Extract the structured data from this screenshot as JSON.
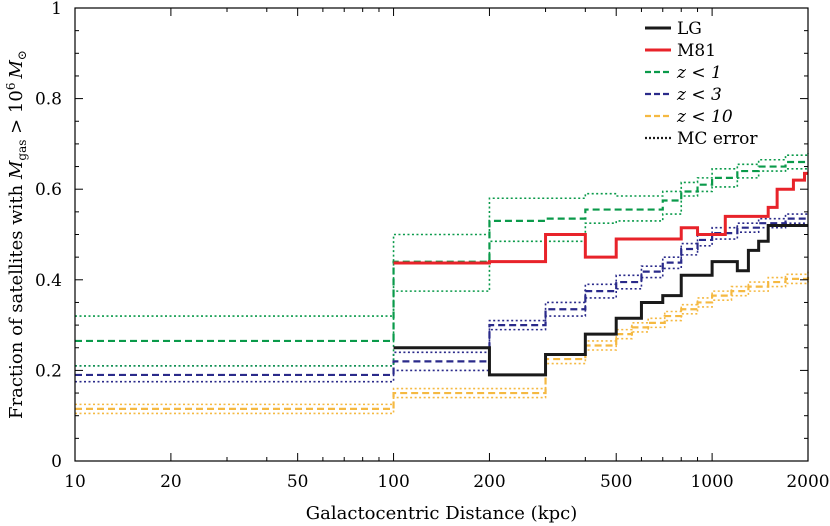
{
  "chart_data": {
    "type": "line",
    "step": true,
    "xscale": "log",
    "title": "",
    "xlabel": "Galactocentric Distance (kpc)",
    "ylabel": "Fraction of satellites with M_gas > 10^6 M_sun",
    "ylabel_parts": {
      "prefix": "Fraction of satellites with ",
      "sym": "M",
      "sub": "gas",
      "mid": " > 10",
      "sup": "6",
      "unit_sym": "M",
      "unit_sub": "⊙"
    },
    "xlim": [
      10,
      2000
    ],
    "ylim": [
      0,
      1
    ],
    "xticks": [
      10,
      20,
      50,
      100,
      200,
      500,
      1000,
      2000
    ],
    "xtick_labels": [
      "10",
      "20",
      "50",
      "100",
      "200",
      "500",
      "1000",
      "2000"
    ],
    "yticks": [
      0,
      0.2,
      0.4,
      0.6,
      0.8,
      1
    ],
    "ytick_labels": [
      "0",
      "0.2",
      "0.4",
      "0.6",
      "0.8",
      "1"
    ],
    "legend_position": "top-right",
    "legend": [
      {
        "label": "LG",
        "color": "#1a1a1a",
        "dash": "solid"
      },
      {
        "label": "M81",
        "color": "#e8232a",
        "dash": "solid"
      },
      {
        "label": "z < 1",
        "color": "#0a9a4a",
        "dash": "dashed"
      },
      {
        "label": "z < 3",
        "color": "#2a2a8a",
        "dash": "dashed"
      },
      {
        "label": "z < 10",
        "color": "#f5b942",
        "dash": "dashed"
      },
      {
        "label": "MC error",
        "color": "#1a1a1a",
        "dash": "dotted"
      }
    ],
    "series": [
      {
        "name": "z < 10 upper",
        "color": "#f5b942",
        "dash": "dotted",
        "width": 1.6,
        "x": [
          10,
          100,
          200,
          300,
          400,
          500,
          560,
          630,
          710,
          800,
          900,
          1000,
          1150,
          1300,
          1500,
          1700,
          2000
        ],
        "y": [
          0.125,
          0.16,
          0.16,
          0.235,
          0.265,
          0.29,
          0.305,
          0.315,
          0.33,
          0.345,
          0.36,
          0.375,
          0.385,
          0.395,
          0.405,
          0.412,
          0.418
        ]
      },
      {
        "name": "z < 10 lower",
        "color": "#f5b942",
        "dash": "dotted",
        "width": 1.6,
        "x": [
          10,
          100,
          200,
          300,
          400,
          500,
          560,
          630,
          710,
          800,
          900,
          1000,
          1150,
          1300,
          1500,
          1700,
          2000
        ],
        "y": [
          0.105,
          0.14,
          0.14,
          0.215,
          0.245,
          0.27,
          0.285,
          0.295,
          0.31,
          0.325,
          0.34,
          0.355,
          0.365,
          0.375,
          0.385,
          0.392,
          0.398
        ]
      },
      {
        "name": "z < 10",
        "color": "#f5b942",
        "dash": "dashed",
        "width": 2.2,
        "x": [
          10,
          100,
          200,
          300,
          400,
          500,
          560,
          630,
          710,
          800,
          900,
          1000,
          1150,
          1300,
          1500,
          1700,
          2000
        ],
        "y": [
          0.115,
          0.15,
          0.15,
          0.225,
          0.255,
          0.28,
          0.295,
          0.305,
          0.32,
          0.335,
          0.35,
          0.365,
          0.375,
          0.385,
          0.395,
          0.402,
          0.408
        ]
      },
      {
        "name": "z < 3 upper",
        "color": "#2a2a8a",
        "dash": "dotted",
        "width": 1.6,
        "x": [
          10,
          100,
          200,
          300,
          400,
          500,
          600,
          700,
          800,
          900,
          1000,
          1200,
          1400,
          1700,
          2000
        ],
        "y": [
          0.21,
          0.24,
          0.31,
          0.35,
          0.39,
          0.41,
          0.43,
          0.45,
          0.48,
          0.5,
          0.515,
          0.525,
          0.535,
          0.545,
          0.545
        ]
      },
      {
        "name": "z < 3 lower",
        "color": "#2a2a8a",
        "dash": "dotted",
        "width": 1.6,
        "x": [
          10,
          100,
          200,
          300,
          400,
          500,
          600,
          700,
          800,
          900,
          1000,
          1200,
          1400,
          1700,
          2000
        ],
        "y": [
          0.175,
          0.2,
          0.29,
          0.32,
          0.36,
          0.38,
          0.405,
          0.425,
          0.455,
          0.475,
          0.49,
          0.505,
          0.515,
          0.525,
          0.525
        ]
      },
      {
        "name": "z < 3",
        "color": "#2a2a8a",
        "dash": "dashed",
        "width": 2.2,
        "x": [
          10,
          100,
          200,
          300,
          400,
          500,
          600,
          700,
          800,
          900,
          1000,
          1200,
          1400,
          1700,
          2000
        ],
        "y": [
          0.19,
          0.22,
          0.3,
          0.335,
          0.375,
          0.395,
          0.418,
          0.438,
          0.468,
          0.488,
          0.503,
          0.515,
          0.525,
          0.535,
          0.535
        ]
      },
      {
        "name": "z < 1 upper",
        "color": "#0a9a4a",
        "dash": "dotted",
        "width": 1.6,
        "x": [
          10,
          100,
          200,
          400,
          500,
          700,
          800,
          900,
          1000,
          1200,
          1400,
          1700,
          2000
        ],
        "y": [
          0.32,
          0.5,
          0.58,
          0.59,
          0.585,
          0.595,
          0.615,
          0.625,
          0.645,
          0.655,
          0.665,
          0.675,
          0.68
        ]
      },
      {
        "name": "z < 1 lower",
        "color": "#0a9a4a",
        "dash": "dotted",
        "width": 1.6,
        "x": [
          10,
          100,
          200,
          400,
          500,
          700,
          800,
          900,
          1000,
          1200,
          1400,
          1700,
          2000
        ],
        "y": [
          0.21,
          0.375,
          0.485,
          0.525,
          0.53,
          0.545,
          0.585,
          0.595,
          0.605,
          0.625,
          0.64,
          0.645,
          0.645
        ]
      },
      {
        "name": "z < 1",
        "color": "#0a9a4a",
        "dash": "dashed",
        "width": 2.2,
        "x": [
          10,
          100,
          200,
          300,
          400,
          500,
          700,
          800,
          900,
          1000,
          1200,
          1400,
          1700,
          2000
        ],
        "y": [
          0.265,
          0.44,
          0.53,
          0.535,
          0.555,
          0.555,
          0.575,
          0.595,
          0.61,
          0.625,
          0.64,
          0.65,
          0.66,
          0.66
        ]
      },
      {
        "name": "LG",
        "color": "#1a1a1a",
        "dash": "solid",
        "width": 3,
        "x": [
          100,
          200,
          300,
          400,
          500,
          600,
          700,
          800,
          1000,
          1200,
          1300,
          1400,
          1500,
          2000
        ],
        "y": [
          0.25,
          0.19,
          0.235,
          0.28,
          0.315,
          0.35,
          0.365,
          0.41,
          0.44,
          0.42,
          0.465,
          0.485,
          0.52,
          0.52
        ]
      },
      {
        "name": "M81",
        "color": "#e8232a",
        "dash": "solid",
        "width": 3,
        "x": [
          100,
          200,
          300,
          400,
          500,
          800,
          900,
          1100,
          1500,
          1600,
          1800,
          1950,
          2000
        ],
        "y": [
          0.437,
          0.44,
          0.5,
          0.45,
          0.49,
          0.515,
          0.5,
          0.54,
          0.56,
          0.6,
          0.62,
          0.635,
          0.635
        ]
      }
    ]
  }
}
